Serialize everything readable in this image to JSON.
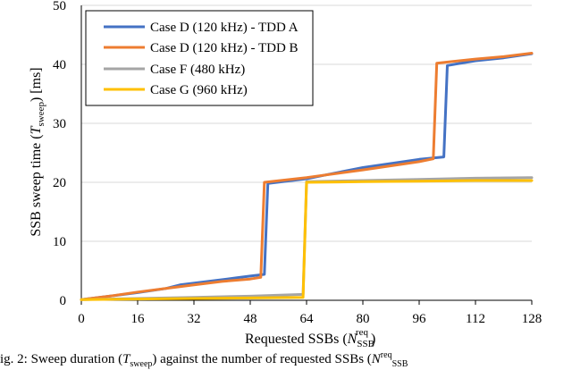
{
  "chart_data": {
    "type": "line",
    "xlabel": "Requested SSBs (N_SSB^req)",
    "ylabel": "SSB sweep time (T_sweep) [ms]",
    "xlim": [
      0,
      128
    ],
    "ylim": [
      0,
      50
    ],
    "xticks": [
      0,
      16,
      32,
      48,
      64,
      80,
      96,
      112,
      128
    ],
    "yticks": [
      0,
      10,
      20,
      30,
      40,
      50
    ],
    "grid": "horizontal",
    "legend_position": "top-left",
    "series": [
      {
        "name": "Case D (120 kHz) - TDD A",
        "color": "#4472C4",
        "points": [
          [
            0,
            0.1
          ],
          [
            8,
            0.7
          ],
          [
            16,
            1.3
          ],
          [
            24,
            2.0
          ],
          [
            28,
            2.6
          ],
          [
            36,
            3.2
          ],
          [
            44,
            3.8
          ],
          [
            48,
            4.1
          ],
          [
            52,
            4.4
          ],
          [
            53,
            19.8
          ],
          [
            64,
            20.6
          ],
          [
            80,
            22.5
          ],
          [
            96,
            23.9
          ],
          [
            103,
            24.3
          ],
          [
            104,
            39.8
          ],
          [
            112,
            40.6
          ],
          [
            120,
            41.1
          ],
          [
            128,
            41.8
          ]
        ]
      },
      {
        "name": "Case D (120 kHz) - TDD B",
        "color": "#ED7D31",
        "points": [
          [
            0,
            0.1
          ],
          [
            8,
            0.7
          ],
          [
            16,
            1.4
          ],
          [
            24,
            2.0
          ],
          [
            32,
            2.6
          ],
          [
            40,
            3.2
          ],
          [
            48,
            3.6
          ],
          [
            51,
            3.9
          ],
          [
            52,
            20.0
          ],
          [
            64,
            20.8
          ],
          [
            80,
            22.1
          ],
          [
            96,
            23.5
          ],
          [
            100,
            24.0
          ],
          [
            101,
            40.2
          ],
          [
            112,
            40.9
          ],
          [
            120,
            41.3
          ],
          [
            128,
            41.9
          ]
        ]
      },
      {
        "name": "Case F (480 kHz)",
        "color": "#A5A5A5",
        "points": [
          [
            0,
            0.1
          ],
          [
            32,
            0.5
          ],
          [
            48,
            0.7
          ],
          [
            63,
            1.0
          ],
          [
            64,
            20.1
          ],
          [
            80,
            20.3
          ],
          [
            96,
            20.5
          ],
          [
            112,
            20.7
          ],
          [
            128,
            20.8
          ]
        ]
      },
      {
        "name": "Case G (960 kHz)",
        "color": "#FFC000",
        "points": [
          [
            0,
            0.1
          ],
          [
            32,
            0.3
          ],
          [
            48,
            0.4
          ],
          [
            63,
            0.5
          ],
          [
            64,
            20.0
          ],
          [
            80,
            20.1
          ],
          [
            96,
            20.2
          ],
          [
            112,
            20.3
          ],
          [
            128,
            20.3
          ]
        ]
      }
    ]
  },
  "caption": "ig. 2: Sweep duration (T_sweep) against the number of requested SSBs (N_SSB^req"
}
